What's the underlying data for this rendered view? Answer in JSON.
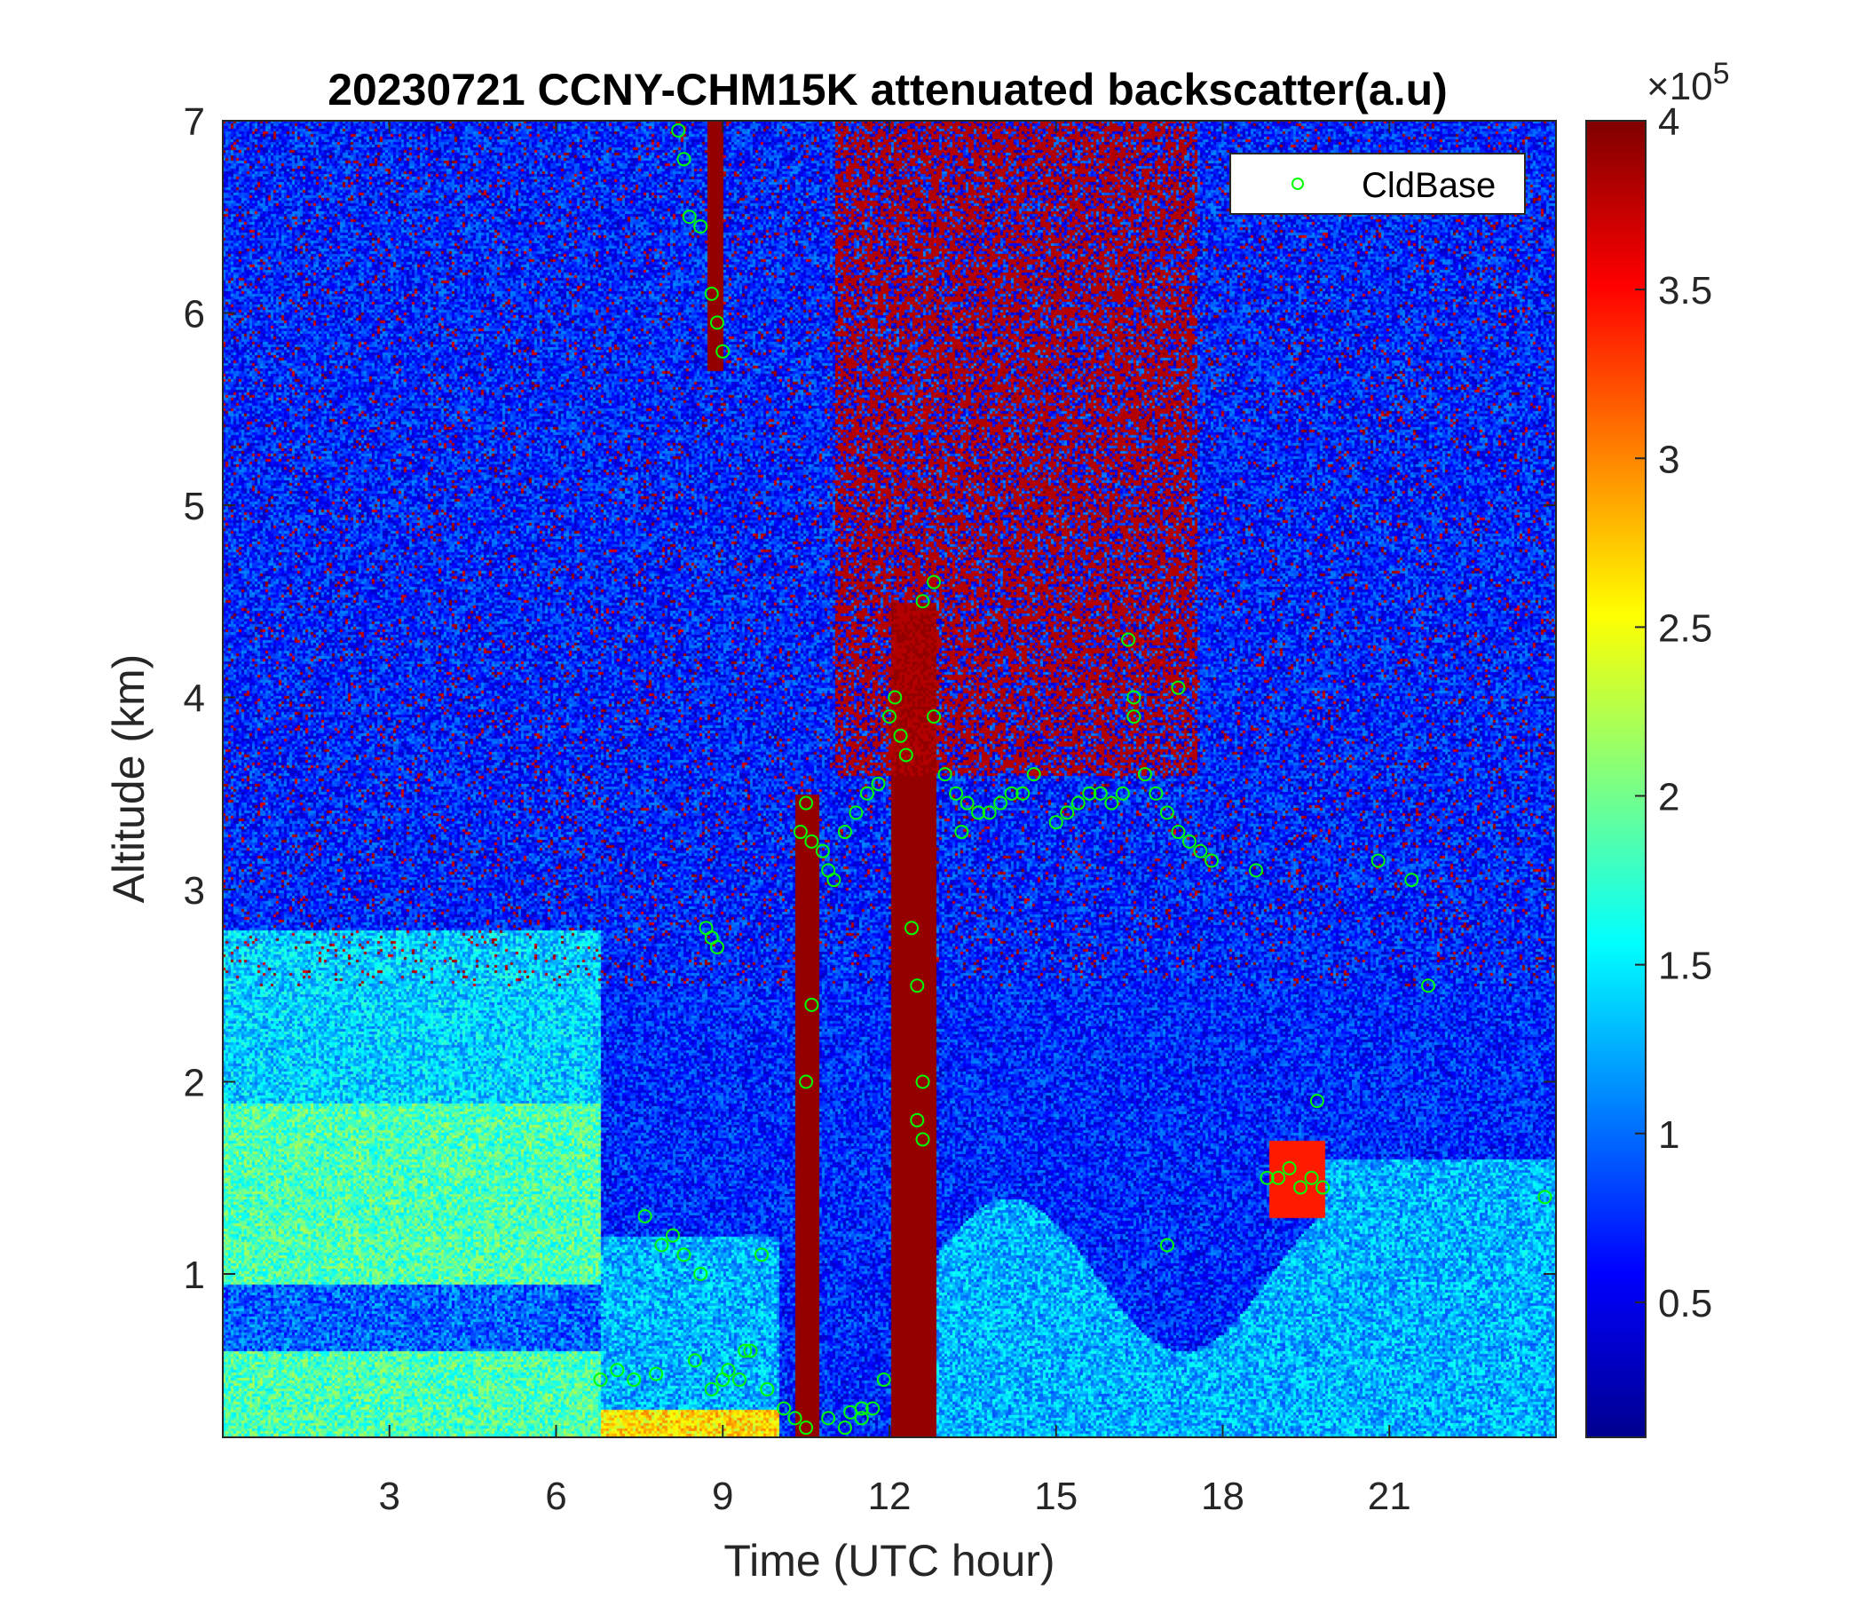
{
  "chart_data": {
    "type": "heatmap",
    "title": "20230721 CCNY-CHM15K attenuated backscatter(a.u)",
    "xlabel": "Time (UTC hour)",
    "ylabel": "Altitude (km)",
    "xlim": [
      0,
      24
    ],
    "ylim": [
      0.15,
      7
    ],
    "xticks": [
      3,
      6,
      9,
      12,
      15,
      18,
      21
    ],
    "xtick_labels": [
      "3",
      "6",
      "9",
      "12",
      "15",
      "18",
      "21"
    ],
    "yticks": [
      1,
      2,
      3,
      4,
      5,
      6,
      7
    ],
    "ytick_labels": [
      "1",
      "2",
      "3",
      "4",
      "5",
      "6",
      "7"
    ],
    "colorbar": {
      "colormap": "jet",
      "range": [
        0.1,
        4
      ],
      "ticks": [
        0.5,
        1,
        1.5,
        2,
        2.5,
        3,
        3.5,
        4
      ],
      "tick_labels": [
        "0.5",
        "1",
        "1.5",
        "2",
        "2.5",
        "3",
        "3.5",
        "4"
      ],
      "exponent_label": "×10",
      "exponent_power": "5"
    },
    "legend": {
      "position": "top-right",
      "entries": [
        "CldBase"
      ]
    },
    "series": [
      {
        "name": "CldBase",
        "marker": "circle",
        "color": "#00ff00",
        "x": [
          8.2,
          8.3,
          8.4,
          8.6,
          8.8,
          8.9,
          9.0,
          8.7,
          8.8,
          8.9,
          7.6,
          7.9,
          8.1,
          8.3,
          8.6,
          9.0,
          9.4,
          9.7,
          6.8,
          7.1,
          7.4,
          7.8,
          8.5,
          8.8,
          9.1,
          9.3,
          9.5,
          9.8,
          10.1,
          10.3,
          10.5,
          10.4,
          10.6,
          10.8,
          10.9,
          11.0,
          10.5,
          10.6,
          10.5,
          11.2,
          11.4,
          11.6,
          11.8,
          10.9,
          11.3,
          11.5,
          11.7,
          11.9,
          12.0,
          12.1,
          12.2,
          12.3,
          12.4,
          12.5,
          12.6,
          12.5,
          12.6,
          12.6,
          12.8,
          12.8,
          13.0,
          13.2,
          13.4,
          13.6,
          13.8,
          14.0,
          14.2,
          14.4,
          14.6,
          13.3,
          15.0,
          15.2,
          15.4,
          15.6,
          15.8,
          16.0,
          16.2,
          16.3,
          16.4,
          16.6,
          16.8,
          17.0,
          17.2,
          17.4,
          17.6,
          17.8,
          16.4,
          17.2,
          18.6,
          18.8,
          19.0,
          19.2,
          19.4,
          19.6,
          19.8,
          19.7,
          20.8,
          21.4,
          21.7,
          23.8,
          11.2,
          11.5,
          17.0
        ],
        "y": [
          6.95,
          6.8,
          6.5,
          6.45,
          6.1,
          5.95,
          5.8,
          2.8,
          2.75,
          2.7,
          1.3,
          1.15,
          1.2,
          1.1,
          1.0,
          0.45,
          0.6,
          1.1,
          0.45,
          0.5,
          0.45,
          0.48,
          0.55,
          0.4,
          0.5,
          0.45,
          0.6,
          0.4,
          0.3,
          0.25,
          0.2,
          3.3,
          3.25,
          3.2,
          3.1,
          3.05,
          3.45,
          2.4,
          2.0,
          3.3,
          3.4,
          3.5,
          3.55,
          0.25,
          0.28,
          0.3,
          0.3,
          0.45,
          3.9,
          4.0,
          3.8,
          3.7,
          2.8,
          2.5,
          2.0,
          1.8,
          1.7,
          4.5,
          4.6,
          3.9,
          3.6,
          3.5,
          3.45,
          3.4,
          3.4,
          3.45,
          3.5,
          3.5,
          3.6,
          3.3,
          3.35,
          3.4,
          3.45,
          3.5,
          3.5,
          3.45,
          3.5,
          4.3,
          4.0,
          3.6,
          3.5,
          3.4,
          3.3,
          3.25,
          3.2,
          3.15,
          3.9,
          4.05,
          3.1,
          1.5,
          1.5,
          1.55,
          1.45,
          1.5,
          1.45,
          1.9,
          3.15,
          3.05,
          2.5,
          1.4,
          0.2,
          0.25,
          1.15
        ]
      }
    ]
  }
}
